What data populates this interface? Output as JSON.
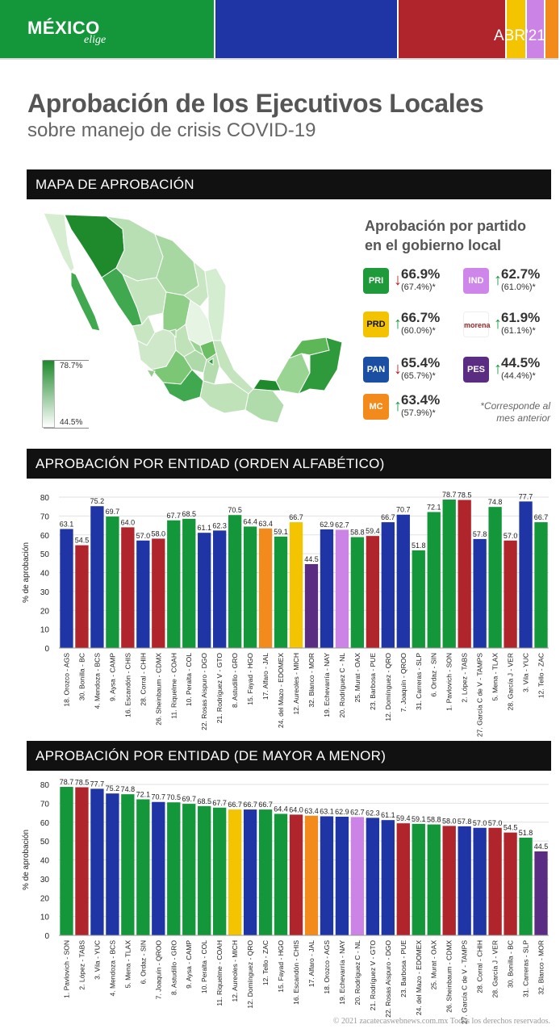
{
  "header": {
    "logo_main": "MÉXICO",
    "logo_sub": "elige",
    "month": "ABR'21",
    "segments": [
      {
        "color": "#14973a"
      },
      {
        "color": "#1f35a5"
      },
      {
        "color": "#b0242b"
      },
      {
        "color": "#f5c400"
      },
      {
        "color": "#cc83e6"
      },
      {
        "color": "#f28b1c"
      }
    ]
  },
  "title": "Aprobación de los Ejecutivos Locales",
  "subtitle": "sobre manejo de crisis COVID-19",
  "sections": {
    "map": "MAPA DE APROBACIÓN",
    "alphabetical": "APROBACIÓN POR ENTIDAD (ORDEN ALFABÉTICO)",
    "ranked": "APROBACIÓN POR ENTIDAD (DE MAYOR A MENOR)"
  },
  "map_legend": {
    "max": "78.7%",
    "min": "44.5%"
  },
  "party_panel": {
    "title_line1": "Aprobación por partido",
    "title_line2": "en el gobierno local",
    "parties": [
      {
        "logo": "PRI",
        "logo_color": "#1e9a3a",
        "value": "66.9%",
        "prev": "(67.4%)*",
        "trend": "down"
      },
      {
        "logo": "PRD",
        "logo_color": "#f4c300",
        "value": "66.7%",
        "prev": "(60.0%)*",
        "trend": "up"
      },
      {
        "logo": "PAN",
        "logo_color": "#1b4fa3",
        "value": "65.4%",
        "prev": "(65.7%)*",
        "trend": "down"
      },
      {
        "logo": "MC",
        "logo_color": "#f28b1c",
        "value": "63.4%",
        "prev": "(57.9%)*",
        "trend": "up"
      },
      {
        "logo": "IND",
        "logo_color": "#cf86ea",
        "value": "62.7%",
        "prev": "(61.0%)*",
        "trend": "up"
      },
      {
        "logo": "morena",
        "logo_color": "#ffffff",
        "value": "61.9%",
        "prev": "(61.1%)*",
        "trend": "up"
      },
      {
        "logo": "PES",
        "logo_color": "#5a2d82",
        "value": "44.5%",
        "prev": "(44.4%)*",
        "trend": "up"
      }
    ],
    "footnote_line1": "*Corresponde al",
    "footnote_line2": "mes anterior"
  },
  "party_colors": {
    "PAN": "#1f35a5",
    "PRI": "#b0242b",
    "MORENA": "#b0242b",
    "GREEN": "#14973a",
    "MC": "#f28b1c",
    "PRD": "#f5c400",
    "IND": "#cc83e6",
    "PES": "#5a2d82"
  },
  "chart_data": [
    {
      "type": "bar",
      "ylabel": "% de aprobación",
      "ylim": [
        0,
        80
      ],
      "yticks": [
        0,
        10,
        20,
        30,
        40,
        50,
        60,
        70,
        80
      ],
      "categories": [
        "18. Orozco - AGS",
        "30. Bonilla - BC",
        "4. Mendoza - BCS",
        "9. Aysa - CAMP",
        "16. Escandón - CHIS",
        "28. Corral - CHIH",
        "26. Sheinbaum - CDMX",
        "11. Riquelme - COAH",
        "10. Peralta - COL",
        "22. Rosas Aispuro - DGO",
        "21. Rodríguez V - GTO",
        "8. Astudillo - GRO",
        "15. Fayad - HGO",
        "17. Alfaro - JAL",
        "24. del Mazo - EDOMEX",
        "12. Aureoles - MICH",
        "32. Blanco - MOR",
        "19. Echevarría - NAY",
        "20. Rodríguez C - NL",
        "25. Murat - OAX",
        "23. Barbosa - PUE",
        "12. Domínguez - QRO",
        "7. Joaquín - QROO",
        "31. Carreras - SLP",
        "6. Ordaz - SIN",
        "1. Pavlovich - SON",
        "2. López - TABS",
        "27. García C de V - TAMPS",
        "5. Mena - TLAX",
        "28. García J - VER",
        "3. Vila - YUC",
        "12. Tello - ZAC"
      ],
      "values": [
        63.1,
        54.5,
        75.2,
        69.7,
        64.0,
        57.0,
        58.0,
        67.7,
        68.5,
        61.1,
        62.3,
        70.5,
        64.4,
        63.4,
        59.1,
        66.7,
        44.5,
        62.9,
        62.7,
        58.8,
        59.4,
        66.7,
        70.7,
        51.8,
        72.1,
        78.7,
        78.5,
        57.8,
        74.8,
        57.0,
        77.7,
        66.7
      ],
      "labels": [
        "63.1",
        "54.5",
        "75.2",
        "69.7",
        "64.0",
        "57.0",
        "58.0",
        "67.7",
        "68.5",
        "61.1",
        "62.3",
        "70.5",
        "64.4",
        "63.4",
        "59.1",
        "66.7",
        "44.5",
        "62.9",
        "62.7",
        "58.8",
        "59.4",
        "66.7",
        "70.7",
        "51.8",
        "72.1",
        "78.7",
        "78.5",
        "57.8",
        "74.8",
        "57.0",
        "77.7",
        "66.7"
      ],
      "colors": [
        "#1f35a5",
        "#b0242b",
        "#1f35a5",
        "#14973a",
        "#b0242b",
        "#1f35a5",
        "#b0242b",
        "#14973a",
        "#14973a",
        "#1f35a5",
        "#1f35a5",
        "#14973a",
        "#14973a",
        "#f28b1c",
        "#14973a",
        "#f5c400",
        "#5a2d82",
        "#1f35a5",
        "#cc83e6",
        "#14973a",
        "#b0242b",
        "#1f35a5",
        "#1f35a5",
        "#14973a",
        "#14973a",
        "#14973a",
        "#b0242b",
        "#1f35a5",
        "#14973a",
        "#b0242b",
        "#1f35a5",
        "#14973a"
      ]
    },
    {
      "type": "bar",
      "ylabel": "% de aprobación",
      "ylim": [
        0,
        80
      ],
      "yticks": [
        0,
        10,
        20,
        30,
        40,
        50,
        60,
        70,
        80
      ],
      "categories": [
        "1. Pavlovich - SON",
        "2. López - TABS",
        "3. Vila - YUC",
        "4. Mendoza - BCS",
        "5. Mena - TLAX",
        "6. Ordaz - SIN",
        "7. Joaquín - QROO",
        "8. Astudillo - GRO",
        "9. Aysa - CAMP",
        "10. Peralta - COL",
        "11. Riquelme - COAH",
        "12. Aureoles - MICH",
        "12. Domínguez - QRO",
        "12. Tello - ZAC",
        "15. Fayad - HGO",
        "16. Escandón - CHIS",
        "17. Alfaro - JAL",
        "18. Orozco - AGS",
        "19. Echevarría - NAY",
        "20. Rodríguez C - NL",
        "21. Rodríguez V - GTO",
        "22. Rosas Aispuro - DGO",
        "23. Barbosa - PUE",
        "24. del Mazo - EDOMEX",
        "25. Murat - OAX",
        "26. Sheinbaum - CDMX",
        "27. García C de V - TAMPS",
        "28. Corral - CHIH",
        "28. García J - VER",
        "30. Bonilla - BC",
        "31. Carreras - SLP",
        "32. Blanco - MOR"
      ],
      "values": [
        78.7,
        78.5,
        77.7,
        75.2,
        74.8,
        72.1,
        70.7,
        70.5,
        69.7,
        68.5,
        67.7,
        66.7,
        66.7,
        66.7,
        64.4,
        64.0,
        63.4,
        63.1,
        62.9,
        62.7,
        62.3,
        61.1,
        59.4,
        59.1,
        58.8,
        58.0,
        57.8,
        57.0,
        57.0,
        54.5,
        51.8,
        44.5
      ],
      "labels": [
        "78.7",
        "78.5",
        "77.7",
        "75.2",
        "74.8",
        "72.1",
        "70.7",
        "70.5",
        "69.7",
        "68.5",
        "67.7",
        "66.7",
        "66.7",
        "66.7",
        "64.4",
        "64.0",
        "63.4",
        "63.1",
        "62.9",
        "62.7",
        "62.3",
        "61.1",
        "59.4",
        "59.1",
        "58.8",
        "58.0",
        "57.8",
        "57.0",
        "57.0",
        "54.5",
        "51.8",
        "44.5"
      ],
      "colors": [
        "#14973a",
        "#b0242b",
        "#1f35a5",
        "#1f35a5",
        "#14973a",
        "#14973a",
        "#1f35a5",
        "#14973a",
        "#14973a",
        "#14973a",
        "#14973a",
        "#f5c400",
        "#1f35a5",
        "#14973a",
        "#14973a",
        "#b0242b",
        "#f28b1c",
        "#1f35a5",
        "#1f35a5",
        "#cc83e6",
        "#1f35a5",
        "#1f35a5",
        "#b0242b",
        "#14973a",
        "#14973a",
        "#b0242b",
        "#1f35a5",
        "#1f35a5",
        "#b0242b",
        "#b0242b",
        "#14973a",
        "#5a2d82"
      ]
    }
  ],
  "copyright": "© 2021 zacatecaswebnews.com.mx Todos los derechos reservados."
}
